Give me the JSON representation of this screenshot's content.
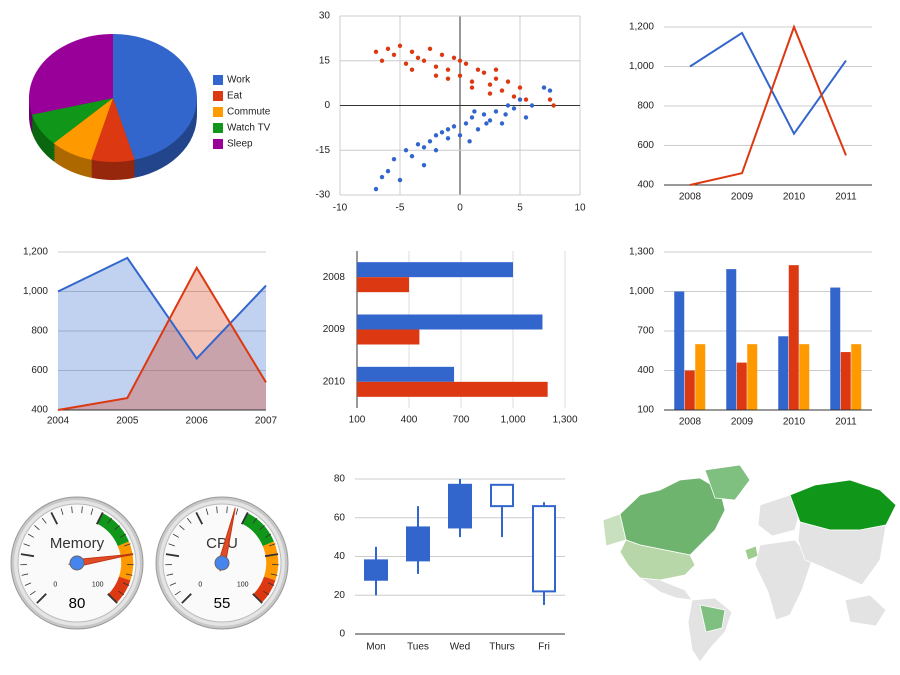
{
  "chart_data": [
    {
      "type": "pie",
      "is3D": true,
      "categories": [
        "Work",
        "Eat",
        "Commute",
        "Watch TV",
        "Sleep"
      ],
      "values": [
        11,
        2,
        2,
        2,
        7
      ],
      "colors": [
        "#3366cc",
        "#dc3912",
        "#ff9900",
        "#109618",
        "#990099"
      ],
      "legend": "right"
    },
    {
      "type": "scatter",
      "xlim": [
        -10,
        10
      ],
      "ylim": [
        -30,
        30
      ],
      "xticks": [
        -10,
        -5,
        0,
        5,
        10
      ],
      "yticks": [
        -30,
        -15,
        0,
        15,
        30
      ],
      "grid": true,
      "series": [
        {
          "color": "#3366cc",
          "x": [
            -7,
            -6.5,
            -6,
            -5.5,
            -5,
            -4.5,
            -4,
            -3.5,
            -3,
            -2.5,
            -2,
            -1.5,
            -1,
            -0.5,
            0,
            0.5,
            1,
            1.5,
            2,
            2.5,
            3,
            3.5,
            4,
            4.5,
            5,
            5.5,
            6,
            7,
            7.5,
            -3,
            -1,
            0.8,
            2.2,
            3.8,
            -2,
            1.2
          ],
          "values": [
            -28,
            -24,
            -22,
            -18,
            -25,
            -15,
            -17,
            -13,
            -20,
            -12,
            -15,
            -9,
            -11,
            -7,
            -10,
            -6,
            -4,
            -8,
            -3,
            -5,
            -2,
            -6,
            0,
            -1,
            2,
            -4,
            0,
            6,
            5,
            -14,
            -8,
            -12,
            -6,
            -3,
            -10,
            -2
          ]
        },
        {
          "color": "#dc3912",
          "x": [
            -7,
            -6.5,
            -6,
            -5.5,
            -5,
            -4.5,
            -4,
            -3.5,
            -3,
            -2.5,
            -2,
            -1.5,
            -1,
            -0.5,
            0,
            0.5,
            1,
            1.5,
            2,
            2.5,
            3,
            3.5,
            4,
            4.5,
            5,
            5.5,
            7.5,
            7.8,
            -4,
            -2,
            0,
            1,
            2.5,
            -1,
            3
          ],
          "values": [
            18,
            15,
            19,
            17,
            20,
            14,
            18,
            16,
            15,
            19,
            13,
            17,
            12,
            16,
            10,
            14,
            8,
            12,
            11,
            7,
            9,
            5,
            8,
            3,
            6,
            2,
            2,
            0,
            12,
            10,
            15,
            6,
            4,
            9,
            12
          ]
        }
      ]
    },
    {
      "type": "line",
      "categories": [
        "2008",
        "2009",
        "2010",
        "2011"
      ],
      "ylim": [
        400,
        1200
      ],
      "yticks": [
        400,
        600,
        800,
        {
          "value": 1000,
          "label": "1,000"
        },
        {
          "value": 1200,
          "label": "1,200"
        }
      ],
      "grid": true,
      "series": [
        {
          "color": "#3366cc",
          "values": [
            1000,
            1170,
            660,
            1030
          ]
        },
        {
          "color": "#dc3912",
          "values": [
            400,
            460,
            1200,
            550
          ]
        }
      ]
    },
    {
      "type": "area",
      "categories": [
        "2004",
        "2005",
        "2006",
        "2007"
      ],
      "ylim": [
        400,
        1200
      ],
      "yticks": [
        400,
        600,
        800,
        {
          "value": 1000,
          "label": "1,000"
        },
        {
          "value": 1200,
          "label": "1,200"
        }
      ],
      "grid": true,
      "series": [
        {
          "color": "#3366cc",
          "values": [
            1000,
            1170,
            660,
            1030
          ]
        },
        {
          "color": "#dc3912",
          "values": [
            400,
            460,
            1120,
            540
          ]
        }
      ]
    },
    {
      "type": "bar",
      "orientation": "horizontal",
      "categories": [
        "2008",
        "2009",
        "2010"
      ],
      "xlim": [
        100,
        1300
      ],
      "xticks": [
        100,
        400,
        700,
        {
          "value": 1000,
          "label": "1,000"
        },
        {
          "value": 1300,
          "label": "1,300"
        }
      ],
      "grid": true,
      "series": [
        {
          "color": "#3366cc",
          "values": [
            1000,
            1170,
            660
          ]
        },
        {
          "color": "#dc3912",
          "values": [
            400,
            460,
            1200
          ]
        }
      ]
    },
    {
      "type": "bar",
      "orientation": "vertical",
      "categories": [
        "2008",
        "2009",
        "2010",
        "2011"
      ],
      "ylim": [
        100,
        1300
      ],
      "yticks": [
        100,
        400,
        700,
        {
          "value": 1000,
          "label": "1,000"
        },
        {
          "value": 1300,
          "label": "1,300"
        }
      ],
      "grid": true,
      "series": [
        {
          "color": "#3366cc",
          "values": [
            1000,
            1170,
            660,
            1030
          ]
        },
        {
          "color": "#dc3912",
          "values": [
            400,
            460,
            1200,
            540
          ]
        },
        {
          "color": "#ff9900",
          "values": [
            600,
            600,
            600,
            600
          ]
        }
      ]
    },
    {
      "type": "gauge",
      "categories": [
        "Memory",
        "CPU"
      ],
      "values": [
        80,
        55
      ],
      "ylim": [
        0,
        100
      ],
      "bands": [
        {
          "from": 60,
          "to": 75,
          "color": "#109618"
        },
        {
          "from": 75,
          "to": 90,
          "color": "#ff9900"
        },
        {
          "from": 90,
          "to": 100,
          "color": "#dc3912"
        }
      ]
    },
    {
      "type": "candlestick",
      "categories": [
        "Mon",
        "Tues",
        "Wed",
        "Thurs",
        "Fri"
      ],
      "ylim": [
        0,
        80
      ],
      "yticks": [
        0,
        20,
        40,
        60,
        80
      ],
      "grid": true,
      "color": "#3366cc",
      "low": [
        20,
        31,
        50,
        50,
        15
      ],
      "open": [
        28,
        38,
        55,
        77,
        66
      ],
      "close": [
        38,
        55,
        77,
        66,
        22
      ],
      "high": [
        45,
        66,
        80,
        77,
        68
      ]
    }
  ]
}
